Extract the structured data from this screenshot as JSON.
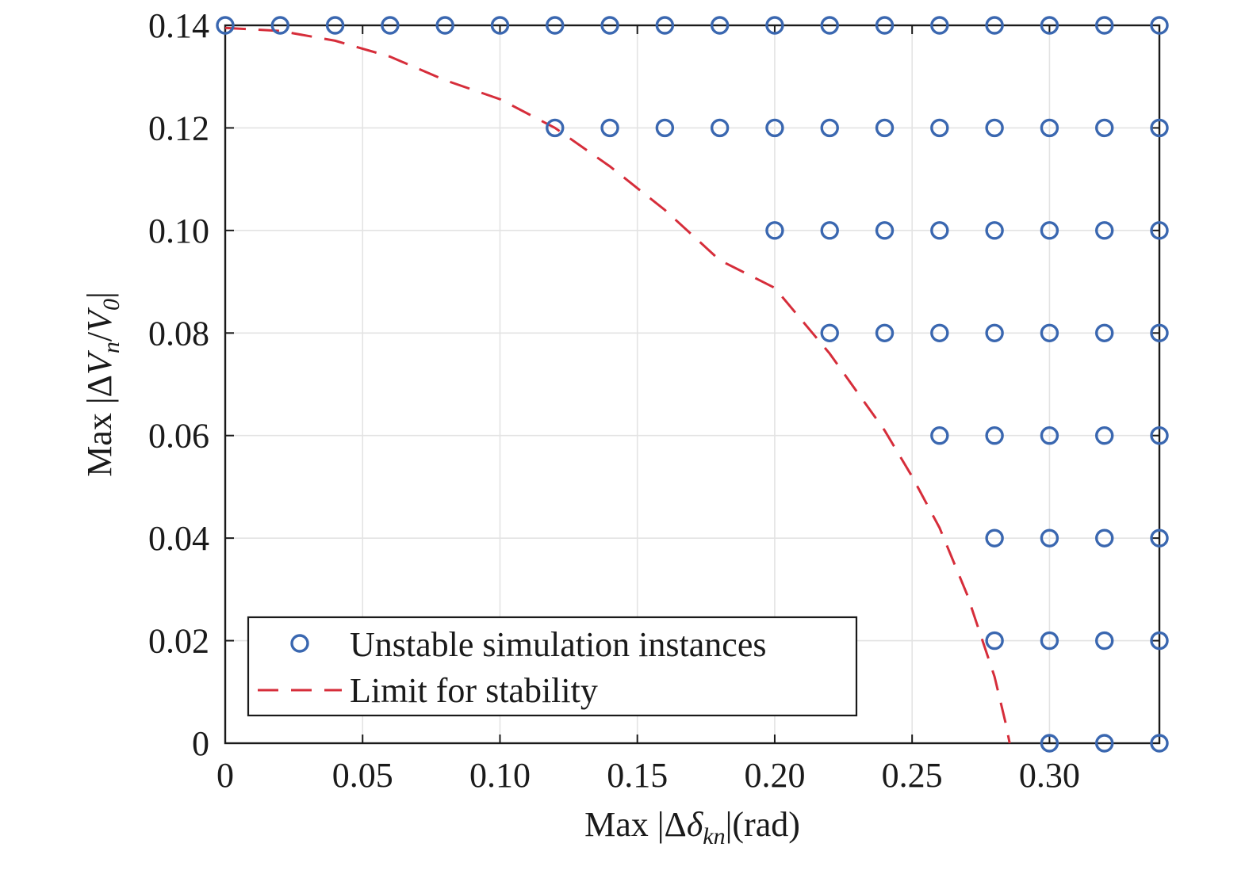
{
  "chart_data": {
    "type": "scatter",
    "xlim": [
      0,
      0.34
    ],
    "ylim": [
      0,
      0.14
    ],
    "x_ticks": [
      "0",
      "0.05",
      "0.10",
      "0.15",
      "0.20",
      "0.25",
      "0.30"
    ],
    "x_tick_values": [
      0,
      0.05,
      0.1,
      0.15,
      0.2,
      0.25,
      0.3
    ],
    "y_ticks": [
      "0",
      "0.02",
      "0.04",
      "0.06",
      "0.08",
      "0.10",
      "0.12",
      "0.14"
    ],
    "y_tick_values": [
      0,
      0.02,
      0.04,
      0.06,
      0.08,
      0.1,
      0.12,
      0.14
    ],
    "grid": true,
    "legend_position": "bottom-left",
    "xlabel": {
      "prefix": "Max |Δ",
      "symbol": "δ",
      "subscript": "kn",
      "suffix": "|(rad)"
    },
    "ylabel": {
      "prefix": "Max |Δ",
      "symbol1": "V",
      "subscript1": "n",
      "slash": "/",
      "symbol2": "V",
      "subscript2": "0",
      "suffix": "|"
    },
    "series": [
      {
        "name": "Unstable simulation instances",
        "kind": "markers",
        "marker": "open-circle",
        "color": "#3a67b0",
        "points": [
          [
            0,
            0.14
          ],
          [
            0.02,
            0.14
          ],
          [
            0.04,
            0.14
          ],
          [
            0.06,
            0.14
          ],
          [
            0.08,
            0.14
          ],
          [
            0.1,
            0.14
          ],
          [
            0.12,
            0.14
          ],
          [
            0.14,
            0.14
          ],
          [
            0.16,
            0.14
          ],
          [
            0.18,
            0.14
          ],
          [
            0.2,
            0.14
          ],
          [
            0.22,
            0.14
          ],
          [
            0.24,
            0.14
          ],
          [
            0.26,
            0.14
          ],
          [
            0.28,
            0.14
          ],
          [
            0.3,
            0.14
          ],
          [
            0.32,
            0.14
          ],
          [
            0.34,
            0.14
          ],
          [
            0.12,
            0.12
          ],
          [
            0.14,
            0.12
          ],
          [
            0.16,
            0.12
          ],
          [
            0.18,
            0.12
          ],
          [
            0.2,
            0.12
          ],
          [
            0.22,
            0.12
          ],
          [
            0.24,
            0.12
          ],
          [
            0.26,
            0.12
          ],
          [
            0.28,
            0.12
          ],
          [
            0.3,
            0.12
          ],
          [
            0.32,
            0.12
          ],
          [
            0.34,
            0.12
          ],
          [
            0.2,
            0.1
          ],
          [
            0.22,
            0.1
          ],
          [
            0.24,
            0.1
          ],
          [
            0.26,
            0.1
          ],
          [
            0.28,
            0.1
          ],
          [
            0.3,
            0.1
          ],
          [
            0.32,
            0.1
          ],
          [
            0.34,
            0.1
          ],
          [
            0.22,
            0.08
          ],
          [
            0.24,
            0.08
          ],
          [
            0.26,
            0.08
          ],
          [
            0.28,
            0.08
          ],
          [
            0.3,
            0.08
          ],
          [
            0.32,
            0.08
          ],
          [
            0.34,
            0.08
          ],
          [
            0.26,
            0.06
          ],
          [
            0.28,
            0.06
          ],
          [
            0.3,
            0.06
          ],
          [
            0.32,
            0.06
          ],
          [
            0.34,
            0.06
          ],
          [
            0.28,
            0.04
          ],
          [
            0.3,
            0.04
          ],
          [
            0.32,
            0.04
          ],
          [
            0.34,
            0.04
          ],
          [
            0.28,
            0.02
          ],
          [
            0.3,
            0.02
          ],
          [
            0.32,
            0.02
          ],
          [
            0.34,
            0.02
          ],
          [
            0.3,
            0
          ],
          [
            0.32,
            0
          ],
          [
            0.34,
            0
          ]
        ]
      },
      {
        "name": "Limit for stability",
        "kind": "dashed-line",
        "color": "#d62d3a",
        "points": [
          [
            0.0,
            0.1395
          ],
          [
            0.02,
            0.1389
          ],
          [
            0.04,
            0.137
          ],
          [
            0.06,
            0.1339
          ],
          [
            0.08,
            0.1293
          ],
          [
            0.1,
            0.1256
          ],
          [
            0.12,
            0.12
          ],
          [
            0.14,
            0.1125
          ],
          [
            0.16,
            0.104
          ],
          [
            0.18,
            0.0942
          ],
          [
            0.2,
            0.0888
          ],
          [
            0.22,
            0.076
          ],
          [
            0.24,
            0.061
          ],
          [
            0.25,
            0.052
          ],
          [
            0.26,
            0.042
          ],
          [
            0.27,
            0.029
          ],
          [
            0.28,
            0.013
          ],
          [
            0.284,
            0.004
          ],
          [
            0.2855,
            0.0
          ]
        ]
      }
    ]
  }
}
